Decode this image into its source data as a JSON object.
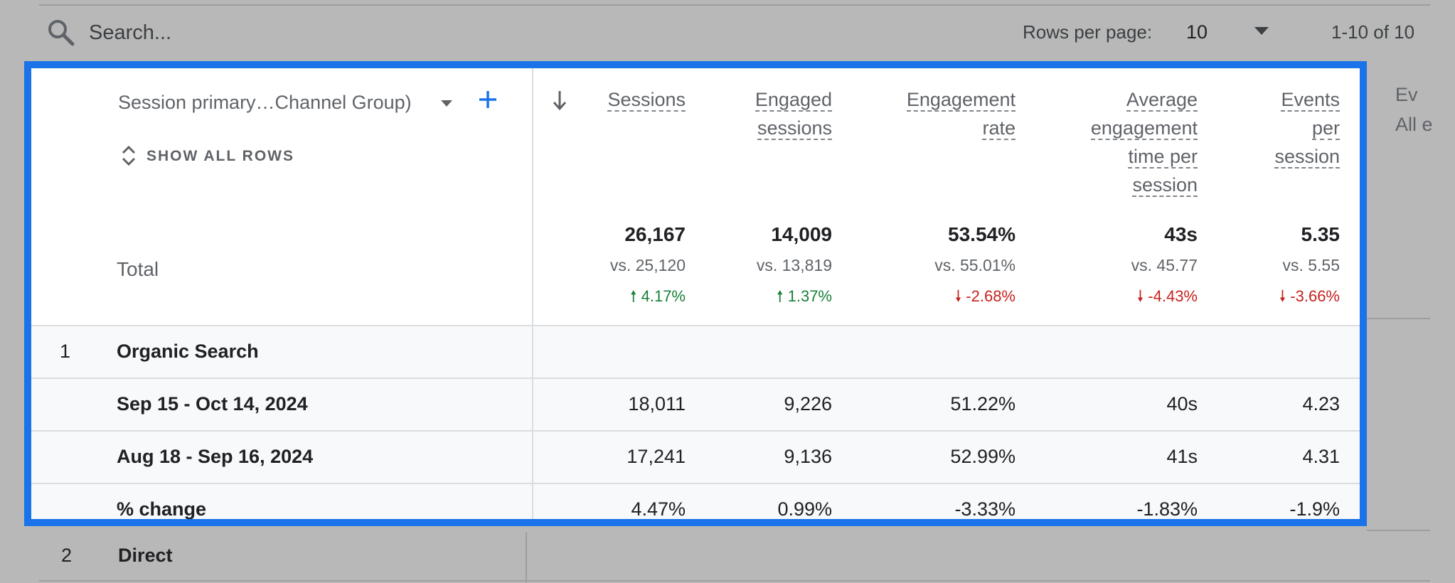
{
  "toolbar": {
    "search_placeholder": "Search...",
    "rows_per_page_label": "Rows per page:",
    "rows_per_page_value": "10",
    "pagination": "1-10 of 10"
  },
  "dimension": {
    "label": "Session primary…Channel Group)",
    "show_all_rows": "SHOW ALL ROWS"
  },
  "columns": [
    {
      "label_lines": [
        "Sessions"
      ]
    },
    {
      "label_lines": [
        "Engaged",
        "sessions"
      ]
    },
    {
      "label_lines": [
        "Engagement",
        "rate"
      ]
    },
    {
      "label_lines": [
        "Average",
        "engagement",
        "time per",
        "session"
      ]
    },
    {
      "label_lines": [
        "Events",
        "per",
        "session"
      ]
    }
  ],
  "background_column": {
    "label": "Ev",
    "sub": "All e"
  },
  "totals": {
    "label": "Total",
    "values": [
      "26,167",
      "14,009",
      "53.54%",
      "43s",
      "5.35"
    ],
    "compare": [
      "vs. 25,120",
      "vs. 13,819",
      "vs. 55.01%",
      "vs. 45.77",
      "vs. 5.55"
    ],
    "change": [
      "4.17%",
      "1.37%",
      "-2.68%",
      "-4.43%",
      "-3.66%"
    ],
    "change_direction": [
      "up",
      "up",
      "down",
      "down",
      "down"
    ]
  },
  "rows": [
    {
      "index": "1",
      "label": "Organic Search"
    },
    {
      "index": "",
      "label": "Sep 15 - Oct 14, 2024",
      "values": [
        "18,011",
        "9,226",
        "51.22%",
        "40s",
        "4.23"
      ]
    },
    {
      "index": "",
      "label": "Aug 18 - Sep 16, 2024",
      "values": [
        "17,241",
        "9,136",
        "52.99%",
        "41s",
        "4.31"
      ]
    },
    {
      "index": "",
      "label": "% change",
      "values": [
        "4.47%",
        "0.99%",
        "-3.33%",
        "-1.83%",
        "-1.9%"
      ]
    }
  ],
  "background_row": {
    "index": "2",
    "label": "Direct"
  },
  "colors": {
    "highlight": "#1a73e8",
    "positive": "#188038",
    "negative": "#c5221f"
  }
}
